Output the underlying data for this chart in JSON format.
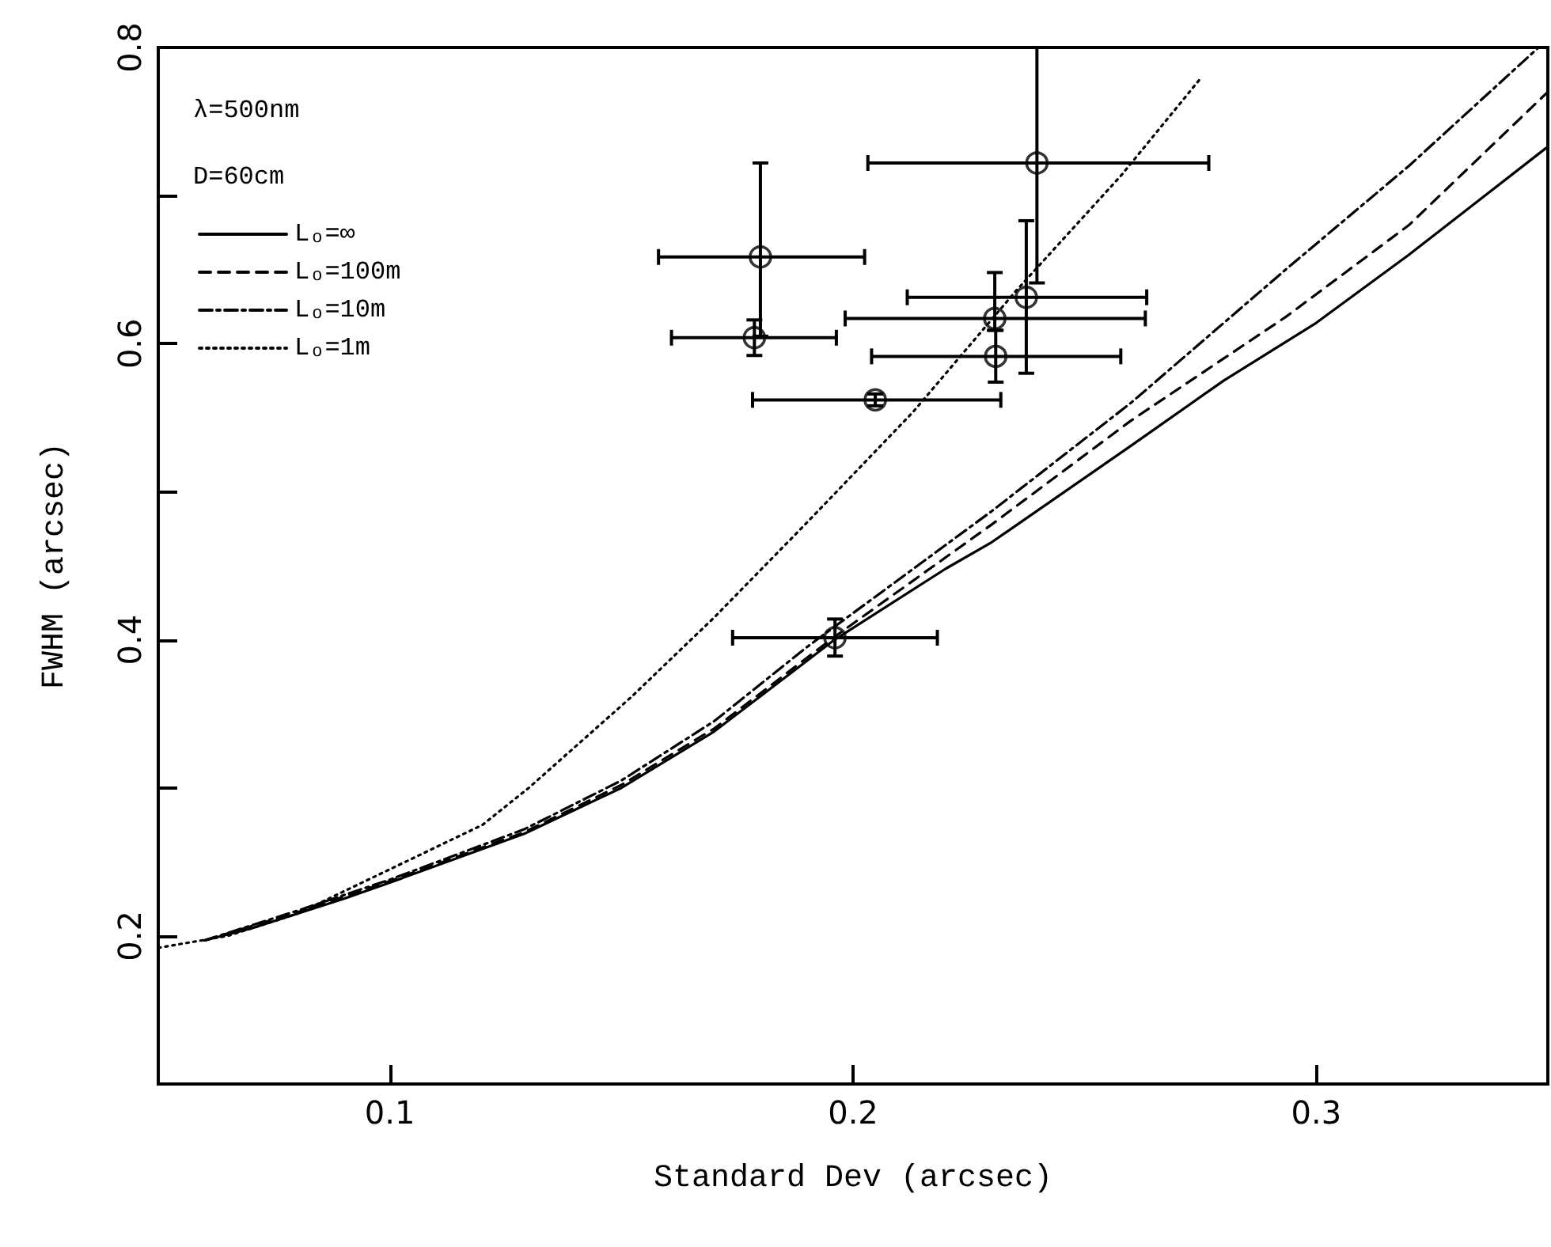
{
  "chart_data": {
    "type": "line",
    "xlabel": "Standard Dev (arcsec)",
    "ylabel": "FWHM (arcsec)",
    "annotations": [
      "λ=500nm",
      "D=60cm"
    ],
    "xlim": [
      0.05,
      0.35
    ],
    "ylim": [
      0.1,
      0.8
    ],
    "xticks": [
      0.1,
      0.2,
      0.3
    ],
    "yticks": [
      0.2,
      {
        "value": 0.3,
        "label": null
      },
      0.4,
      {
        "value": 0.5,
        "label": null
      },
      0.6,
      {
        "value": 0.7,
        "label": null
      },
      0.8
    ],
    "grid": false,
    "legend": "top left",
    "series": [
      {
        "name": "Lₒ=∞",
        "color": "#000000",
        "line_style": "solid",
        "marker": "none",
        "x": [
          0.06,
          0.07,
          0.08,
          0.09,
          0.1,
          0.129,
          0.15,
          0.17,
          0.196,
          0.22,
          0.23,
          0.26,
          0.28,
          0.3,
          0.32,
          0.35
        ],
        "values": [
          0.197,
          0.205,
          0.215,
          0.225,
          0.236,
          0.269,
          0.3,
          0.338,
          0.4,
          0.448,
          0.466,
          0.531,
          0.575,
          0.614,
          0.66,
          0.733
        ]
      },
      {
        "name": "Lₒ=100m",
        "color": "#000000",
        "line_style": "dashed",
        "marker": "none",
        "x": [
          0.06,
          0.08,
          0.1,
          0.129,
          0.15,
          0.17,
          0.196,
          0.23,
          0.26,
          0.2934,
          0.32,
          0.35
        ],
        "values": [
          0.197,
          0.216,
          0.237,
          0.27,
          0.302,
          0.34,
          0.402,
          0.478,
          0.548,
          0.618,
          0.68,
          0.77
        ]
      },
      {
        "name": "Lₒ=10m",
        "color": "#000000",
        "line_style": "dashdot",
        "marker": "none",
        "x": [
          0.06,
          0.08,
          0.1,
          0.129,
          0.15,
          0.17,
          0.19,
          0.23,
          0.26,
          0.2934,
          0.32,
          0.348
        ],
        "values": [
          0.197,
          0.217,
          0.238,
          0.272,
          0.305,
          0.345,
          0.395,
          0.487,
          0.56,
          0.65,
          0.72,
          0.8
        ]
      },
      {
        "name": "Lₒ=1m",
        "color": "#000000",
        "line_style": "dotted",
        "marker": "none",
        "x": [
          0.05,
          0.065,
          0.08,
          0.1,
          0.12,
          0.13,
          0.152,
          0.17,
          0.19,
          0.213,
          0.235,
          0.258,
          0.275
        ],
        "values": [
          0.192,
          0.2,
          0.215,
          0.245,
          0.275,
          0.3,
          0.361,
          0.415,
          0.479,
          0.554,
          0.635,
          0.714,
          0.779
        ]
      },
      {
        "type": "scatter",
        "color": "#000000",
        "marker": "circle",
        "x": [
          0.18,
          0.1787,
          0.2048,
          0.1961,
          0.2397,
          0.2374,
          0.2306,
          0.2308
        ],
        "values": [
          0.6585,
          0.604,
          0.562,
          0.4014,
          0.722,
          0.6313,
          0.617,
          0.5914
        ],
        "errors": [
          [
            0.605,
            0.722
          ],
          [
            0.592,
            0.616
          ],
          [
            0.558,
            0.566
          ],
          [
            0.389,
            0.414
          ],
          [
            0.641,
            0.8
          ],
          [
            0.58,
            0.683
          ],
          [
            0.609,
            0.648
          ],
          [
            0.574,
            0.609
          ]
        ],
        "xerrors": [
          [
            0.158,
            0.2025
          ],
          [
            0.1608,
            0.1964
          ],
          [
            0.1783,
            0.2319
          ],
          [
            0.174,
            0.2182
          ],
          [
            0.2032,
            0.2768
          ],
          [
            0.2117,
            0.2634
          ],
          [
            0.1983,
            0.2631
          ],
          [
            0.204,
            0.2578
          ]
        ]
      }
    ]
  }
}
